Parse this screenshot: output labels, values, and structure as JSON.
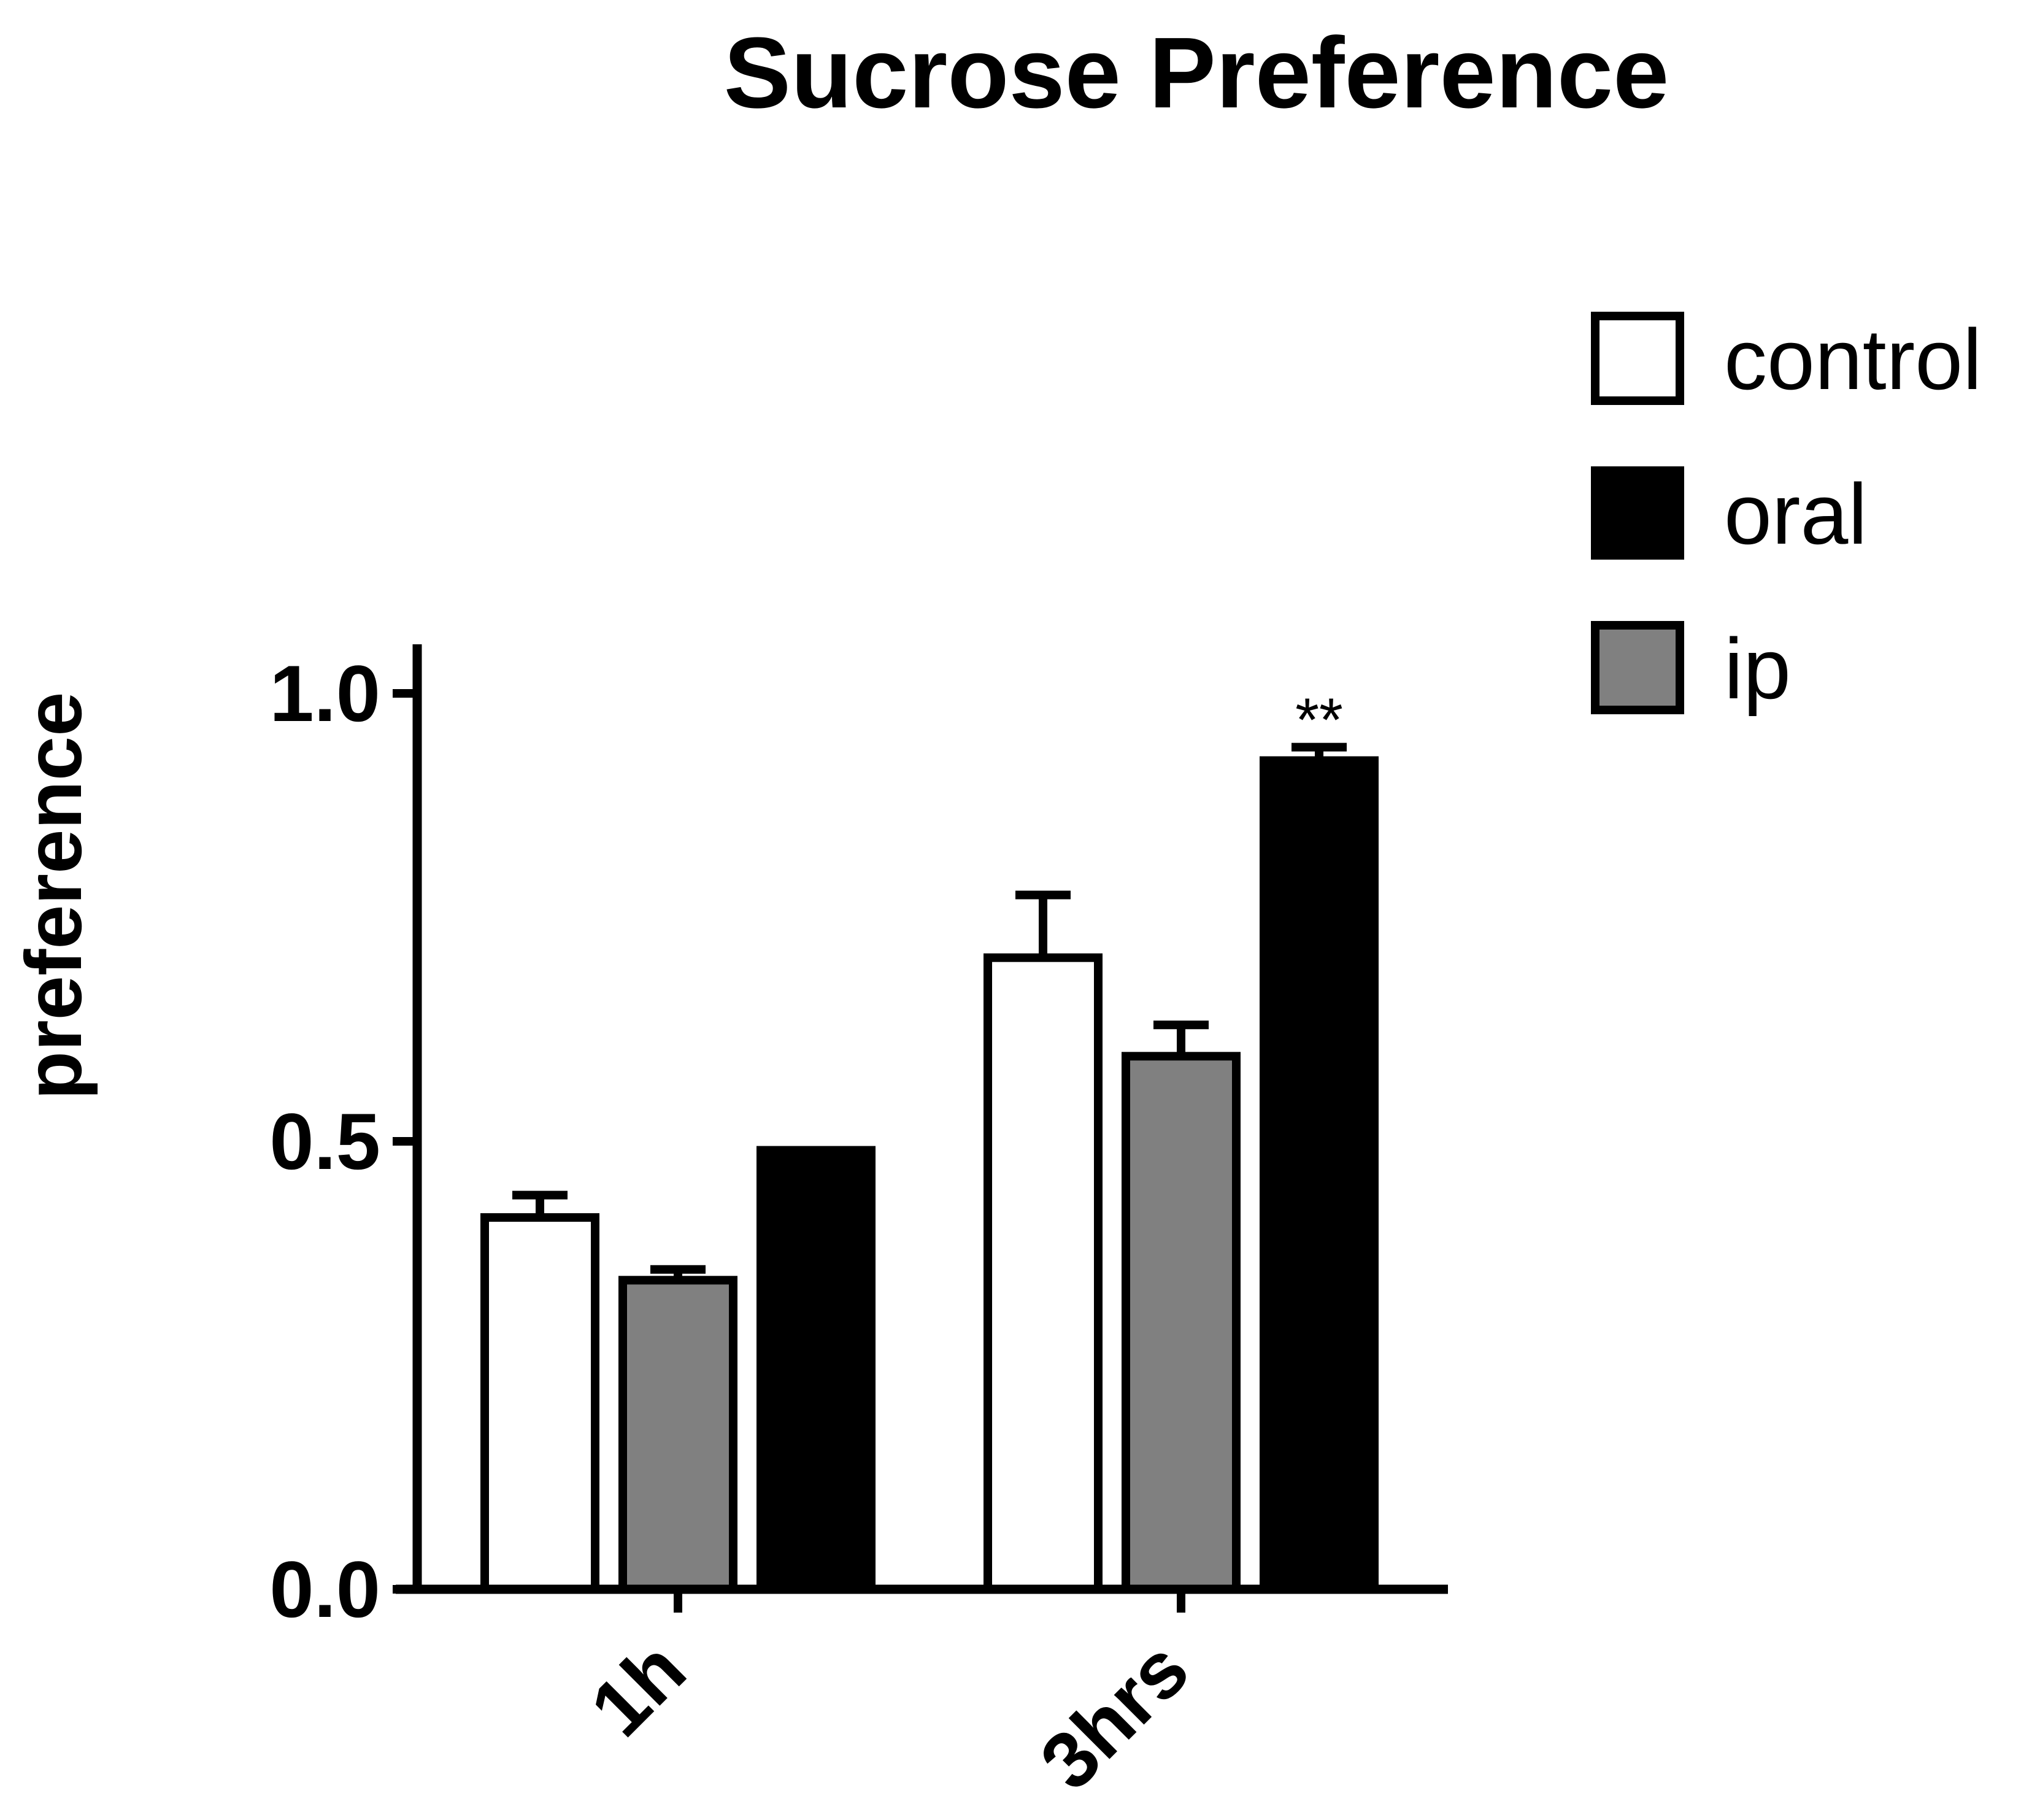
{
  "chart_data": {
    "type": "bar",
    "title": "Sucrose Preference",
    "xlabel": "",
    "ylabel": "preference",
    "ylim": [
      0,
      1.05
    ],
    "yticks": [
      0.0,
      0.5,
      1.0
    ],
    "ytick_labels": [
      "0.0",
      "0.5",
      "1.0"
    ],
    "categories": [
      "1h",
      "3hrs"
    ],
    "series_order": [
      [
        "control",
        "ip",
        "oral"
      ],
      [
        "control",
        "ip",
        "oral"
      ]
    ],
    "series": [
      {
        "name": "control",
        "color": "#ffffff",
        "values": [
          0.415,
          0.705
        ],
        "errors": [
          0.025,
          0.07
        ]
      },
      {
        "name": "oral",
        "color": "#000000",
        "values": [
          0.49,
          0.925
        ],
        "errors": [
          0.0,
          0.015
        ]
      },
      {
        "name": "ip",
        "color": "#808080",
        "values": [
          0.345,
          0.595
        ],
        "errors": [
          0.012,
          0.035
        ]
      }
    ],
    "legend": {
      "position": "top-right",
      "entries": [
        {
          "label": "control",
          "color": "#ffffff"
        },
        {
          "label": "oral",
          "color": "#000000"
        },
        {
          "label": "ip",
          "color": "#808080"
        }
      ]
    },
    "annotations": [
      {
        "text": "**",
        "category": "3hrs",
        "series": "oral"
      }
    ],
    "grid": false
  }
}
